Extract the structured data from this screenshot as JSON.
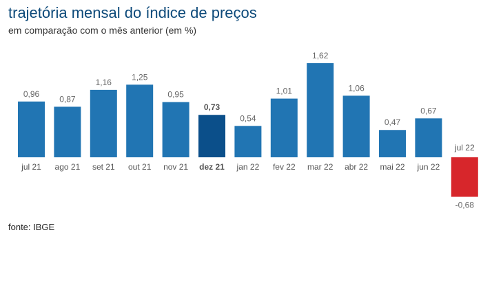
{
  "title": "trajetória mensal do índice de preços",
  "subtitle": "em comparação com o mês anterior (em %)",
  "source": "fonte: IBGE",
  "colors": {
    "default": "#2175b3",
    "highlight": "#0b4f8a",
    "negative": "#d7262b"
  },
  "chart_data": {
    "type": "bar",
    "title": "trajetória mensal do índice de preços",
    "ylabel": "em %",
    "categories": [
      "jul 21",
      "ago 21",
      "set 21",
      "out 21",
      "nov 21",
      "dez 21",
      "jan 22",
      "fev 22",
      "mar 22",
      "abr 22",
      "mai 22",
      "jun 22",
      "jul 22"
    ],
    "values": [
      0.96,
      0.87,
      1.16,
      1.25,
      0.95,
      0.73,
      0.54,
      1.01,
      1.62,
      1.06,
      0.47,
      0.67,
      -0.68
    ],
    "value_labels": [
      "0,96",
      "0,87",
      "1,16",
      "1,25",
      "0,95",
      "0,73",
      "0,54",
      "1,01",
      "1,62",
      "1,06",
      "0,47",
      "0,67",
      "-0,68"
    ],
    "highlight": "dez 21",
    "ylim": [
      -0.68,
      1.62
    ],
    "grid": false
  }
}
